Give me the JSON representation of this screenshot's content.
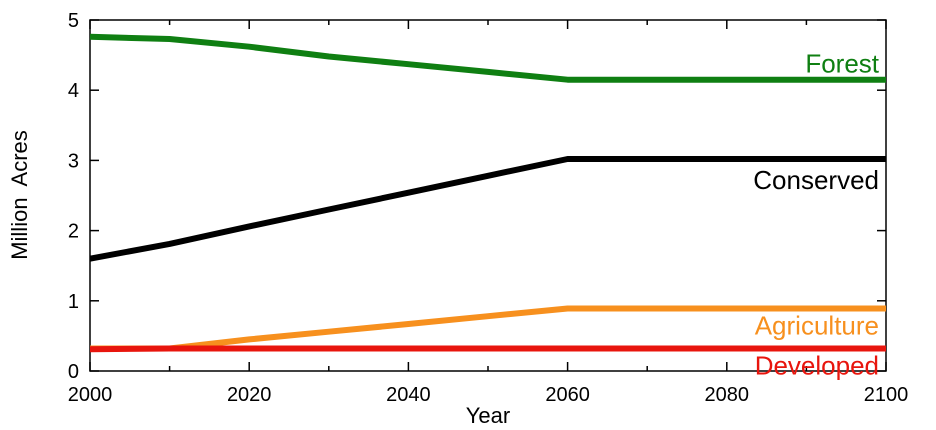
{
  "chart_data": {
    "type": "line",
    "xlabel": "Year",
    "ylabel": "Million  Acres",
    "xlim": [
      2000,
      2100
    ],
    "ylim": [
      0,
      5
    ],
    "x_ticks": [
      2000,
      2020,
      2040,
      2060,
      2080,
      2100
    ],
    "x_minor_ticks": [
      2010,
      2030,
      2050,
      2070,
      2090
    ],
    "y_ticks": [
      0,
      1,
      2,
      3,
      4,
      5
    ],
    "grid": false,
    "legend": "inline labels at right end of each line",
    "series": [
      {
        "name": "Forest",
        "color": "#0f7f12",
        "x": [
          2000,
          2010,
          2020,
          2030,
          2040,
          2050,
          2060,
          2070,
          2080,
          2090,
          2100
        ],
        "y": [
          4.76,
          4.73,
          4.62,
          4.48,
          4.37,
          4.26,
          4.15,
          4.15,
          4.15,
          4.15,
          4.15
        ]
      },
      {
        "name": "Conserved",
        "color": "#000000",
        "x": [
          2000,
          2010,
          2020,
          2030,
          2040,
          2050,
          2060,
          2070,
          2080,
          2090,
          2100
        ],
        "y": [
          1.6,
          1.81,
          2.06,
          2.3,
          2.54,
          2.78,
          3.02,
          3.02,
          3.02,
          3.02,
          3.02
        ]
      },
      {
        "name": "Agriculture",
        "color": "#f7901e",
        "x": [
          2000,
          2010,
          2020,
          2030,
          2040,
          2050,
          2060,
          2070,
          2080,
          2090,
          2100
        ],
        "y": [
          0.32,
          0.32,
          0.45,
          0.56,
          0.67,
          0.78,
          0.89,
          0.89,
          0.89,
          0.89,
          0.89
        ]
      },
      {
        "name": "Developed",
        "color": "#e8150d",
        "x": [
          2000,
          2010,
          2020,
          2030,
          2040,
          2050,
          2060,
          2070,
          2080,
          2090,
          2100
        ],
        "y": [
          0.31,
          0.32,
          0.32,
          0.32,
          0.32,
          0.32,
          0.32,
          0.32,
          0.32,
          0.32,
          0.32
        ]
      }
    ]
  }
}
